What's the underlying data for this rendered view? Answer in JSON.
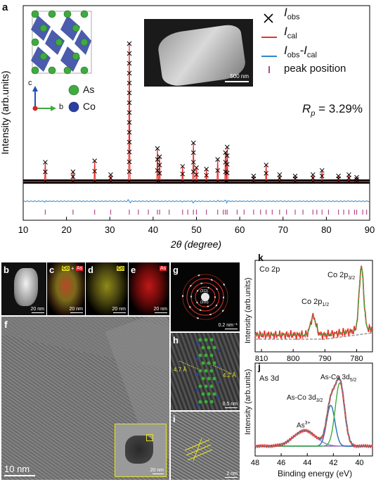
{
  "panels": {
    "a": {
      "letter": "a",
      "legend": {
        "obs": "I",
        "obs_sub": "obs",
        "cal": "I",
        "cal_sub": "cal",
        "diff": "I",
        "diff_sub1": "obs",
        "diff_mid": "-I",
        "diff_sub2": "cal",
        "peak": "peak position"
      },
      "rp": {
        "prefix": "R",
        "sub": "p",
        "value": " = 3.29%"
      },
      "crystal_legend": {
        "c": "c",
        "b": "b",
        "as": "As",
        "co": "Co"
      },
      "sem_scale": "500 nm",
      "colors": {
        "obs": "#000000",
        "cal": "#e8322b",
        "diff": "#2f86c9",
        "peak": "#b44a8c",
        "as": "#3faa3f",
        "co": "#2b3f9e"
      }
    },
    "b": {
      "letter": "b",
      "scale": "20 nm"
    },
    "c": {
      "letter": "c",
      "scale": "20 nm",
      "tag1": "Co",
      "tag_plus": "+",
      "tag2": "As"
    },
    "d": {
      "letter": "d",
      "scale": "20 nm",
      "tag": "Co"
    },
    "e": {
      "letter": "e",
      "scale": "20 nm",
      "tag": "As"
    },
    "f": {
      "letter": "f",
      "scale": "10 nm",
      "inset_scale": "20 nm"
    },
    "g": {
      "letter": "g",
      "scale": "0.2 nm⁻¹",
      "rings": [
        "(311)",
        "(310)"
      ]
    },
    "h": {
      "letter": "h",
      "scale": "0.5 nm",
      "d1": "4.7 Å",
      "d2": "4.2 Å"
    },
    "i": {
      "letter": "i",
      "scale": "2 nm"
    },
    "k": {
      "letter": "k",
      "title": "Co 2p",
      "peak1": "Co 2p",
      "peak1_sub": "1/2",
      "peak2": "Co 2p",
      "peak2_sub": "3/2"
    },
    "j": {
      "letter": "j",
      "title": "As 3d",
      "peak_as3": "As",
      "peak_as3_sup": "3+",
      "peak_a": "As-Co 3d",
      "peak_a_sub": "3/2",
      "peak_b": "As-Co 3d",
      "peak_b_sub": "5/2"
    }
  },
  "chart_data": [
    {
      "type": "line",
      "panel": "a",
      "xlabel": "2θ (degree)",
      "ylabel": "Intensity (arb.units)",
      "xlim": [
        10,
        90
      ],
      "xticks": [
        10,
        20,
        30,
        40,
        50,
        60,
        70,
        80,
        90
      ],
      "grid": false,
      "legend_position": "top-right",
      "peaks": [
        {
          "x": 15.1,
          "y": 14
        },
        {
          "x": 21.5,
          "y": 7
        },
        {
          "x": 26.5,
          "y": 15
        },
        {
          "x": 30.2,
          "y": 5
        },
        {
          "x": 34.5,
          "y": 100
        },
        {
          "x": 41.0,
          "y": 24
        },
        {
          "x": 41.5,
          "y": 18
        },
        {
          "x": 46.8,
          "y": 11
        },
        {
          "x": 49.3,
          "y": 28
        },
        {
          "x": 50.0,
          "y": 10
        },
        {
          "x": 52.3,
          "y": 9
        },
        {
          "x": 54.9,
          "y": 16
        },
        {
          "x": 56.7,
          "y": 21
        },
        {
          "x": 57.1,
          "y": 25
        },
        {
          "x": 63.2,
          "y": 4
        },
        {
          "x": 66.1,
          "y": 12
        },
        {
          "x": 69.2,
          "y": 5
        },
        {
          "x": 72.8,
          "y": 4
        },
        {
          "x": 76.9,
          "y": 5
        },
        {
          "x": 79.0,
          "y": 8
        },
        {
          "x": 82.8,
          "y": 4
        },
        {
          "x": 85.2,
          "y": 5
        },
        {
          "x": 87.0,
          "y": 3
        }
      ],
      "peak_positions": [
        15.1,
        21.5,
        26.5,
        30.2,
        34.5,
        36.6,
        38.9,
        41.0,
        41.5,
        43.7,
        46.8,
        48.0,
        49.3,
        50.0,
        52.3,
        54.9,
        56.2,
        56.7,
        57.1,
        59.4,
        61.0,
        63.2,
        64.8,
        66.1,
        67.5,
        69.2,
        70.8,
        72.8,
        74.6,
        76.9,
        77.8,
        79.0,
        80.5,
        82.8,
        84.0,
        85.2,
        86.5,
        87.0,
        88.4,
        89.3
      ]
    },
    {
      "type": "line",
      "panel": "k",
      "xlabel": "",
      "ylabel": "Intensity (arb.units)",
      "xlim": [
        812,
        775
      ],
      "xticks": [
        810,
        800,
        790,
        780
      ],
      "grid": false,
      "peaks": [
        {
          "label": "Co 2p1/2",
          "x": 793.7
        },
        {
          "label": "Co 2p3/2",
          "x": 778.5
        }
      ]
    },
    {
      "type": "line",
      "panel": "j",
      "xlabel": "Binding energy (eV)",
      "ylabel": "Intensity (arb.units)",
      "xlim": [
        48,
        39
      ],
      "xticks": [
        48,
        46,
        44,
        42,
        40
      ],
      "grid": false,
      "peaks": [
        {
          "label": "As3+",
          "x": 44.2
        },
        {
          "label": "As-Co 3d3/2",
          "x": 42.2
        },
        {
          "label": "As-Co 3d5/2",
          "x": 41.5
        }
      ]
    }
  ]
}
